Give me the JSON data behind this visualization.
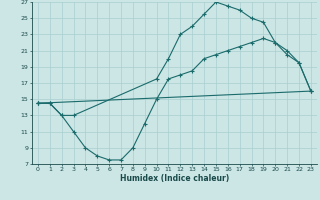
{
  "xlabel": "Humidex (Indice chaleur)",
  "bg_color": "#cce5e5",
  "grid_color": "#aacfcf",
  "line_color": "#1a6b6b",
  "xlim": [
    -0.5,
    23.5
  ],
  "ylim": [
    7,
    27
  ],
  "xticks": [
    0,
    1,
    2,
    3,
    4,
    5,
    6,
    7,
    8,
    9,
    10,
    11,
    12,
    13,
    14,
    15,
    16,
    17,
    18,
    19,
    20,
    21,
    22,
    23
  ],
  "yticks": [
    7,
    9,
    11,
    13,
    15,
    17,
    19,
    21,
    23,
    25,
    27
  ],
  "line1_x": [
    0,
    1,
    2,
    3,
    4,
    5,
    6,
    7,
    8,
    9,
    10,
    11,
    12,
    13,
    14,
    15,
    16,
    17,
    18,
    19,
    20,
    21,
    22,
    23
  ],
  "line1_y": [
    14.5,
    14.5,
    13.0,
    11.0,
    9.0,
    8.0,
    7.5,
    7.5,
    9.0,
    12.0,
    15.0,
    17.5,
    18.0,
    18.5,
    20.0,
    20.5,
    21.0,
    21.5,
    22.0,
    22.5,
    22.0,
    20.5,
    19.5,
    16.0
  ],
  "line2_x": [
    0,
    1,
    2,
    3,
    10,
    11,
    12,
    13,
    14,
    15,
    16,
    17,
    18,
    19,
    20,
    21,
    22,
    23
  ],
  "line2_y": [
    14.5,
    14.5,
    13.0,
    13.0,
    17.5,
    20.0,
    23.0,
    24.0,
    25.5,
    27.0,
    26.5,
    26.0,
    25.0,
    24.5,
    22.0,
    21.0,
    19.5,
    16.0
  ],
  "line3_x": [
    0,
    23
  ],
  "line3_y": [
    14.5,
    16.0
  ],
  "xlabel_fontsize": 5.5,
  "tick_fontsize": 4.5
}
